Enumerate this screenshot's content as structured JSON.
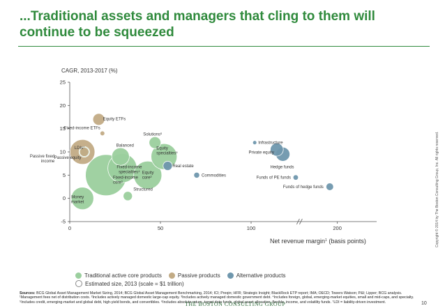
{
  "header": {
    "title": "...Traditional assets and managers that cling to them will continue to be squeezed"
  },
  "chart_data": {
    "type": "scatter",
    "subtype": "bubble",
    "ylabel": "CAGR, 2013-2017 (%)",
    "xlabel": "Net revenue margin",
    "xlabel_sup": "1",
    "xlabel_suffix": " (basis points)",
    "xlim": [
      0,
      220
    ],
    "ylim": [
      -5,
      25
    ],
    "x_ticks": [
      "0",
      "50",
      "100",
      "200"
    ],
    "y_ticks": [
      "-5",
      "0",
      "5",
      "10",
      "15",
      "20",
      "25"
    ],
    "axis_break": "between 100 and 200",
    "colors": {
      "traditional": "#9bcf9e",
      "passive": "#c2ab85",
      "alternative": "#6f97ad"
    },
    "points": [
      {
        "label": "Money market",
        "x": 7,
        "y": 0,
        "size": 90,
        "category": "traditional"
      },
      {
        "label": "Fixed-income core³",
        "x": 20,
        "y": 5,
        "size": 300,
        "category": "traditional"
      },
      {
        "label": "Fixed-income specialties⁴",
        "x": 29,
        "y": 6.5,
        "size": 150,
        "category": "traditional"
      },
      {
        "label": "Balanced",
        "x": 28,
        "y": 9,
        "size": 55,
        "category": "traditional"
      },
      {
        "label": "LDIs⁷",
        "x": 8,
        "y": 10,
        "size": 20,
        "category": "traditional"
      },
      {
        "label": "Equity core²",
        "x": 43,
        "y": 5,
        "size": 140,
        "category": "traditional"
      },
      {
        "label": "Equity specialties⁵",
        "x": 52,
        "y": 9,
        "size": 120,
        "category": "traditional"
      },
      {
        "label": "Solutions⁶",
        "x": 47,
        "y": 12,
        "size": 25,
        "category": "traditional"
      },
      {
        "label": "Structured",
        "x": 32,
        "y": 0.5,
        "size": 15,
        "category": "traditional"
      },
      {
        "label": "Passive fixed income",
        "x": 7,
        "y": 10,
        "size": 110,
        "category": "passive"
      },
      {
        "label": "Equity ETFs",
        "x": 16,
        "y": 17,
        "size": 25,
        "category": "passive"
      },
      {
        "label": "Fixed-income ETFs",
        "x": 18,
        "y": 14,
        "size": 4,
        "category": "passive"
      },
      {
        "label": "Passive equity",
        "x": 8,
        "y": 10,
        "size": 15,
        "category": "passive"
      },
      {
        "label": "Real estate",
        "x": 54,
        "y": 7,
        "size": 15,
        "category": "alternative"
      },
      {
        "label": "Commodities",
        "x": 70,
        "y": 5,
        "size": 6,
        "category": "alternative"
      },
      {
        "label": "Infrastructure",
        "x": 102,
        "y": 12,
        "size": 3,
        "category": "alternative"
      },
      {
        "label": "Private equity",
        "x": 120,
        "y": 10.5,
        "size": 30,
        "category": "alternative"
      },
      {
        "label": "Hedge funds",
        "x": 128,
        "y": 9.5,
        "size": 35,
        "category": "alternative"
      },
      {
        "label": "Funds of PE funds",
        "x": 145,
        "y": 4.5,
        "size": 5,
        "category": "alternative"
      },
      {
        "label": "Funds of hedge funds",
        "x": 190,
        "y": 2.5,
        "size": 10,
        "category": "alternative"
      }
    ],
    "legend": [
      {
        "label": "Traditional active core products",
        "category": "traditional"
      },
      {
        "label": "Passive products",
        "category": "passive"
      },
      {
        "label": "Alternative products",
        "category": "alternative"
      },
      {
        "label": "Estimated size, 2013 (scale = $1 trillion)",
        "category": "scale"
      }
    ]
  },
  "notes": {
    "sources_label": "Sources:",
    "sources_text": " BCG Global Asset Management Market Sizing, 2014; BCG Global Asset Management Benchmarking, 2014; ICI; Preqin; HFR; Strategic Insight; BlackRock ETP report; IMA; OECD; Towers Watson; P&I; Lipper; BCG analysis.",
    "footnotes": "¹Management fees net of distribution costs. ²Includes actively managed domestic large-cap equity. ³Includes actively managed domestic government debt. ⁴Includes foreign, global, emerging-market equities, small and mid-caps, and specialty. ⁵Includes credit, emerging-market and global debt, high-yield bonds, and convertibles. ⁶Includes absolute return, target date funds, global asset allocation, flexible, income, and volatility funds. ⁷LDI = liability-driven investment."
  },
  "footer": {
    "brand": "THE BOSTON CONSULTING GROUP",
    "page_number": "10",
    "copyright": "Copyright © 2014 by The Boston Consulting Group, Inc. All rights reserved."
  }
}
